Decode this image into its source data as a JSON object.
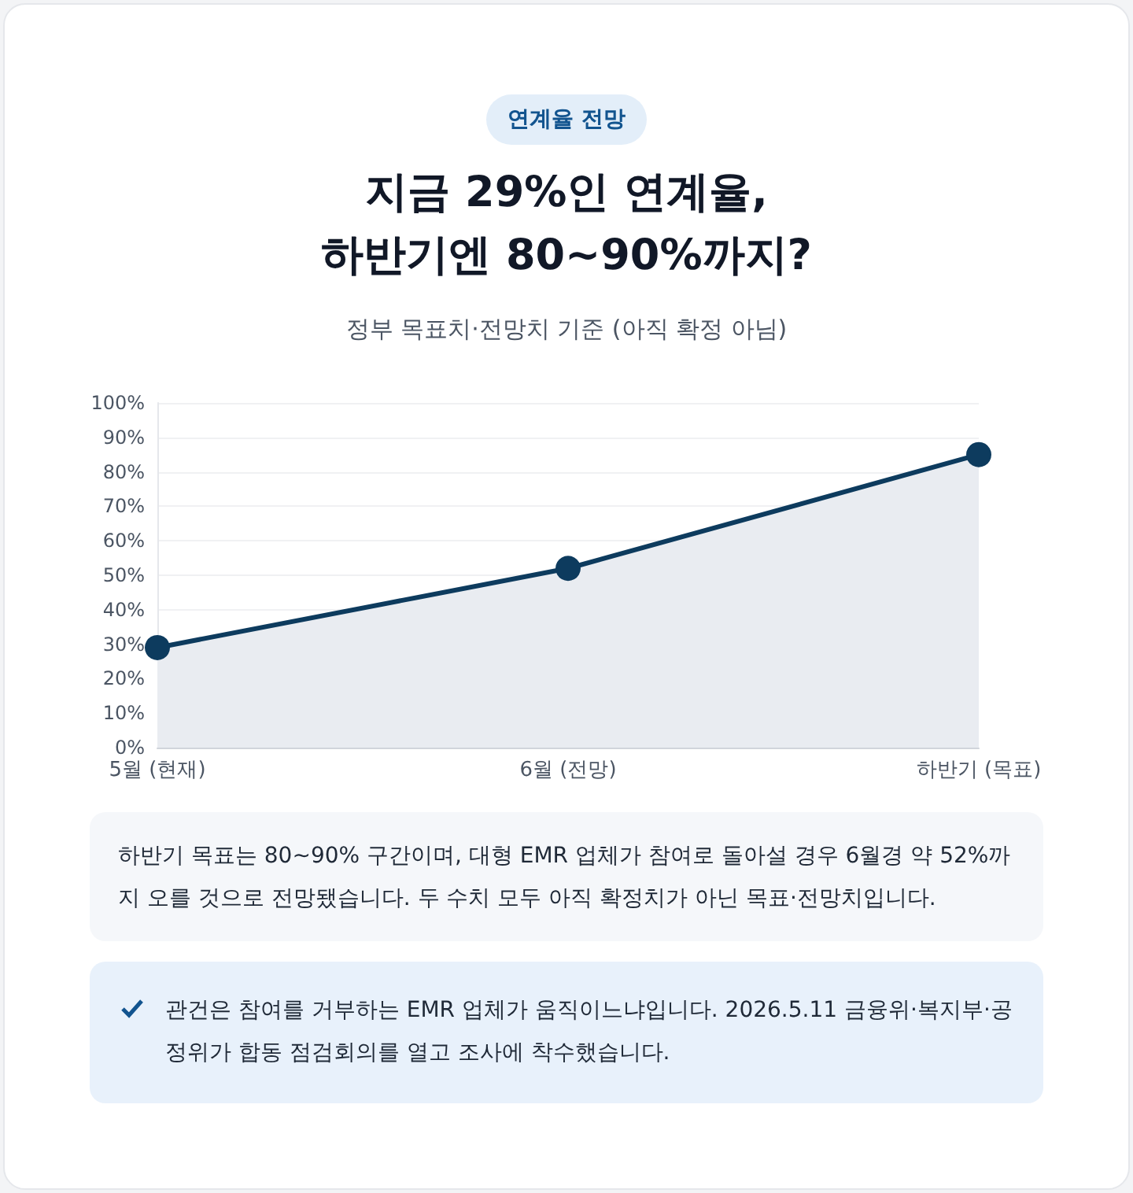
{
  "chart_data": {
    "type": "area",
    "title": "지금 29%인 연계율,\n하반기엔 80~90%까지?",
    "subtitle": "정부 목표치·전망치 기준 (아직 확정 아님)",
    "annotations": [
      "연계율 전망",
      "하반기 목표는 80~90% 구간이며, 대형 EMR 업체가 참여로 돌아설 경우 6월경 약 52%까지 오를 것으로 전망됐습니다. 두 수치 모두 아직 확정치가 아닌 목표·전망치입니다.",
      "관건은 참여를 거부하는 EMR 업체가 움직이느냐입니다. 2026.5.11 금융위·복지부·공정위가 합동 점검회의를 열고 조사에 착수했습니다."
    ],
    "categories": [
      "5월 (현재)",
      "6월 (전망)",
      "하반기 (목표)"
    ],
    "series": [
      {
        "color": "#0d3b5e",
        "values": [
          29,
          52,
          85
        ]
      }
    ],
    "ylim": [
      0,
      100
    ],
    "yticks": [
      {
        "value": 0,
        "label": "0%"
      },
      {
        "value": 10,
        "label": "10%"
      },
      {
        "value": 20,
        "label": "20%"
      },
      {
        "value": 30,
        "label": "30%"
      },
      {
        "value": 40,
        "label": "40%"
      },
      {
        "value": 50,
        "label": "50%"
      },
      {
        "value": 60,
        "label": "60%"
      },
      {
        "value": 70,
        "label": "70%"
      },
      {
        "value": 80,
        "label": "80%"
      },
      {
        "value": 90,
        "label": "90%"
      },
      {
        "value": 100,
        "label": "100%"
      }
    ],
    "grid": "y",
    "marker": "circle",
    "line_style": "solid"
  }
}
